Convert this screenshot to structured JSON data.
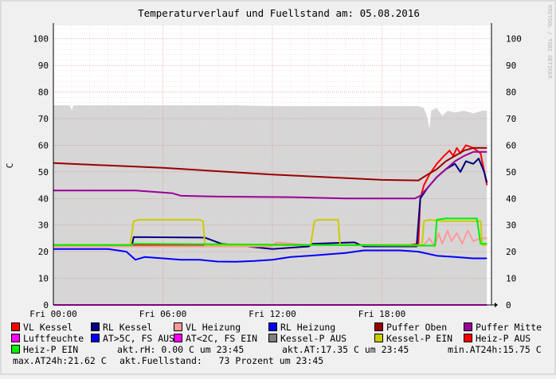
{
  "chart_data": {
    "type": "line",
    "title": "Temperaturverlauf und Fuellstand am: 05.08.2016",
    "ylabel": "C",
    "watermark": "RRDTOOL / TOBI OETIKER",
    "ylim": [
      0,
      105
    ],
    "xlim_hours": [
      0,
      24
    ],
    "y_ticks": [
      0,
      10,
      20,
      30,
      40,
      50,
      60,
      70,
      80,
      90,
      100
    ],
    "x_ticks": [
      {
        "h": 0,
        "label": "Fri 00:00"
      },
      {
        "h": 6,
        "label": "Fri 06:00"
      },
      {
        "h": 12,
        "label": "Fri 12:00"
      },
      {
        "h": 18,
        "label": "Fri 18:00"
      }
    ],
    "grid": true,
    "fill": {
      "name": "akt.Fuellstand",
      "color": "#d6d6d6",
      "points": [
        [
          0,
          75
        ],
        [
          0.9,
          75
        ],
        [
          1.0,
          73
        ],
        [
          1.1,
          75
        ],
        [
          10,
          75
        ],
        [
          12,
          74.7
        ],
        [
          20,
          74.7
        ],
        [
          20.3,
          74
        ],
        [
          20.5,
          70
        ],
        [
          20.6,
          66
        ],
        [
          20.7,
          73
        ],
        [
          21,
          74
        ],
        [
          21.3,
          71
        ],
        [
          21.6,
          73
        ],
        [
          22,
          72.3
        ],
        [
          22.5,
          73
        ],
        [
          23,
          72
        ],
        [
          23.5,
          73
        ],
        [
          23.75,
          73
        ]
      ]
    },
    "series": [
      {
        "name": "VL Kessel",
        "color": "#ff0000",
        "width": 2,
        "points": [
          [
            0,
            22.5
          ],
          [
            19.5,
            22.5
          ],
          [
            20.0,
            23
          ],
          [
            20.1,
            40
          ],
          [
            20.3,
            45
          ],
          [
            20.6,
            49
          ],
          [
            21,
            53
          ],
          [
            21.4,
            56
          ],
          [
            21.7,
            58
          ],
          [
            21.9,
            56
          ],
          [
            22.1,
            59
          ],
          [
            22.3,
            57
          ],
          [
            22.6,
            60
          ],
          [
            23,
            59
          ],
          [
            23.4,
            57
          ],
          [
            23.75,
            45
          ]
        ]
      },
      {
        "name": "RL Kessel",
        "color": "#000080",
        "width": 2,
        "points": [
          [
            0,
            22
          ],
          [
            4.3,
            22
          ],
          [
            4.4,
            25.5
          ],
          [
            8.3,
            25.3
          ],
          [
            9.2,
            23
          ],
          [
            12,
            21
          ],
          [
            14,
            22
          ],
          [
            14.2,
            23
          ],
          [
            16.5,
            23.5
          ],
          [
            17,
            22
          ],
          [
            19.9,
            22
          ],
          [
            20.1,
            40
          ],
          [
            20.5,
            44
          ],
          [
            21,
            48
          ],
          [
            21.5,
            51
          ],
          [
            22,
            53
          ],
          [
            22.3,
            50
          ],
          [
            22.6,
            54
          ],
          [
            23,
            53
          ],
          [
            23.3,
            55
          ],
          [
            23.6,
            50
          ],
          [
            23.75,
            46
          ]
        ]
      },
      {
        "name": "VL Heizung",
        "color": "#ff9999",
        "width": 2,
        "points": [
          [
            0,
            22
          ],
          [
            12,
            22
          ],
          [
            12.2,
            23.5
          ],
          [
            14,
            22.5
          ],
          [
            19.5,
            22.3
          ],
          [
            20.3,
            22.5
          ],
          [
            20.6,
            25
          ],
          [
            20.9,
            22
          ],
          [
            21.1,
            27
          ],
          [
            21.3,
            23
          ],
          [
            21.6,
            28
          ],
          [
            21.8,
            24
          ],
          [
            22.1,
            27
          ],
          [
            22.4,
            23
          ],
          [
            22.7,
            28
          ],
          [
            23.0,
            24
          ],
          [
            23.4,
            25
          ],
          [
            23.75,
            25
          ]
        ]
      },
      {
        "name": "RL Heizung",
        "color": "#0000ff",
        "width": 2,
        "points": [
          [
            0,
            21
          ],
          [
            3,
            21
          ],
          [
            4,
            20
          ],
          [
            4.5,
            17
          ],
          [
            5,
            18
          ],
          [
            6,
            17.5
          ],
          [
            7,
            17
          ],
          [
            8,
            17
          ],
          [
            9,
            16.3
          ],
          [
            10,
            16.2
          ],
          [
            11,
            16.5
          ],
          [
            12,
            17
          ],
          [
            13,
            18
          ],
          [
            14,
            18.5
          ],
          [
            15,
            19
          ],
          [
            16,
            19.5
          ],
          [
            17,
            20.5
          ],
          [
            18,
            20.5
          ],
          [
            19,
            20.5
          ],
          [
            20,
            20
          ],
          [
            21,
            18.5
          ],
          [
            22,
            18
          ],
          [
            23,
            17.5
          ],
          [
            23.75,
            17.5
          ]
        ]
      },
      {
        "name": "Puffer Oben",
        "color": "#990000",
        "width": 2,
        "points": [
          [
            0,
            53.3
          ],
          [
            6,
            51.5
          ],
          [
            12,
            49
          ],
          [
            18,
            47
          ],
          [
            20,
            46.8
          ],
          [
            20.5,
            49
          ],
          [
            21,
            51
          ],
          [
            21.5,
            54
          ],
          [
            22,
            56
          ],
          [
            22.5,
            58
          ],
          [
            23,
            59
          ],
          [
            23.75,
            59
          ]
        ]
      },
      {
        "name": "Puffer Mitte",
        "color": "#990099",
        "width": 2,
        "points": [
          [
            0,
            43
          ],
          [
            4.5,
            43
          ],
          [
            6.5,
            42
          ],
          [
            7,
            41
          ],
          [
            9,
            40.7
          ],
          [
            13,
            40.5
          ],
          [
            16,
            40
          ],
          [
            19.8,
            40
          ],
          [
            20.1,
            41
          ],
          [
            20.5,
            44
          ],
          [
            21,
            48
          ],
          [
            21.5,
            51
          ],
          [
            22,
            54
          ],
          [
            22.5,
            56
          ],
          [
            23,
            57.5
          ],
          [
            23.75,
            57.5
          ]
        ]
      },
      {
        "name": "Luftfeuchte",
        "color": "#ff00ff",
        "width": 2,
        "points": [
          [
            0,
            0
          ],
          [
            23.75,
            0
          ]
        ]
      },
      {
        "name": "AT>5C, FS AUS",
        "color": "#0000ff",
        "width": 1,
        "points": []
      },
      {
        "name": "AT<2C, FS EIN",
        "color": "#ff00ff",
        "width": 1,
        "points": []
      },
      {
        "name": "Kessel-P AUS",
        "color": "#808080",
        "width": 1,
        "points": []
      },
      {
        "name": "Kessel-P EIN",
        "color": "#cccc00",
        "width": 2,
        "points": [
          [
            0,
            22.5
          ],
          [
            4.2,
            22.5
          ],
          [
            4.4,
            31.5
          ],
          [
            4.7,
            32
          ],
          [
            8,
            32
          ],
          [
            8.2,
            31.5
          ],
          [
            8.3,
            22.5
          ],
          [
            14.1,
            22.5
          ],
          [
            14.3,
            31.5
          ],
          [
            14.5,
            32
          ],
          [
            15.6,
            32
          ],
          [
            15.7,
            22.5
          ],
          [
            20.2,
            22.5
          ],
          [
            20.3,
            31.5
          ],
          [
            20.6,
            32
          ],
          [
            21.3,
            31.5
          ],
          [
            23.4,
            31.5
          ],
          [
            23.5,
            22.5
          ],
          [
            23.75,
            22.5
          ]
        ]
      },
      {
        "name": "Heiz-P AUS",
        "color": "#ff0000",
        "width": 1,
        "points": []
      },
      {
        "name": "Heiz-P EIN",
        "color": "#00ee00",
        "width": 2,
        "points": [
          [
            0,
            22.5
          ],
          [
            4.3,
            22.5
          ],
          [
            4.4,
            23
          ],
          [
            19.8,
            22.3
          ],
          [
            20.9,
            22.3
          ],
          [
            21.0,
            32
          ],
          [
            21.5,
            32.5
          ],
          [
            23.2,
            32.5
          ],
          [
            23.4,
            23
          ],
          [
            23.75,
            23
          ]
        ]
      }
    ]
  },
  "legend_stats": {
    "rh": "akt.rH: 0.00 C um 23:45",
    "at": "akt.AT:17.35 C um 23:45",
    "min": "min.AT24h:15.75 C",
    "max": "max.AT24h:21.62 C",
    "fill": "akt.Fuellstand:   73 Prozent um 23:45"
  }
}
